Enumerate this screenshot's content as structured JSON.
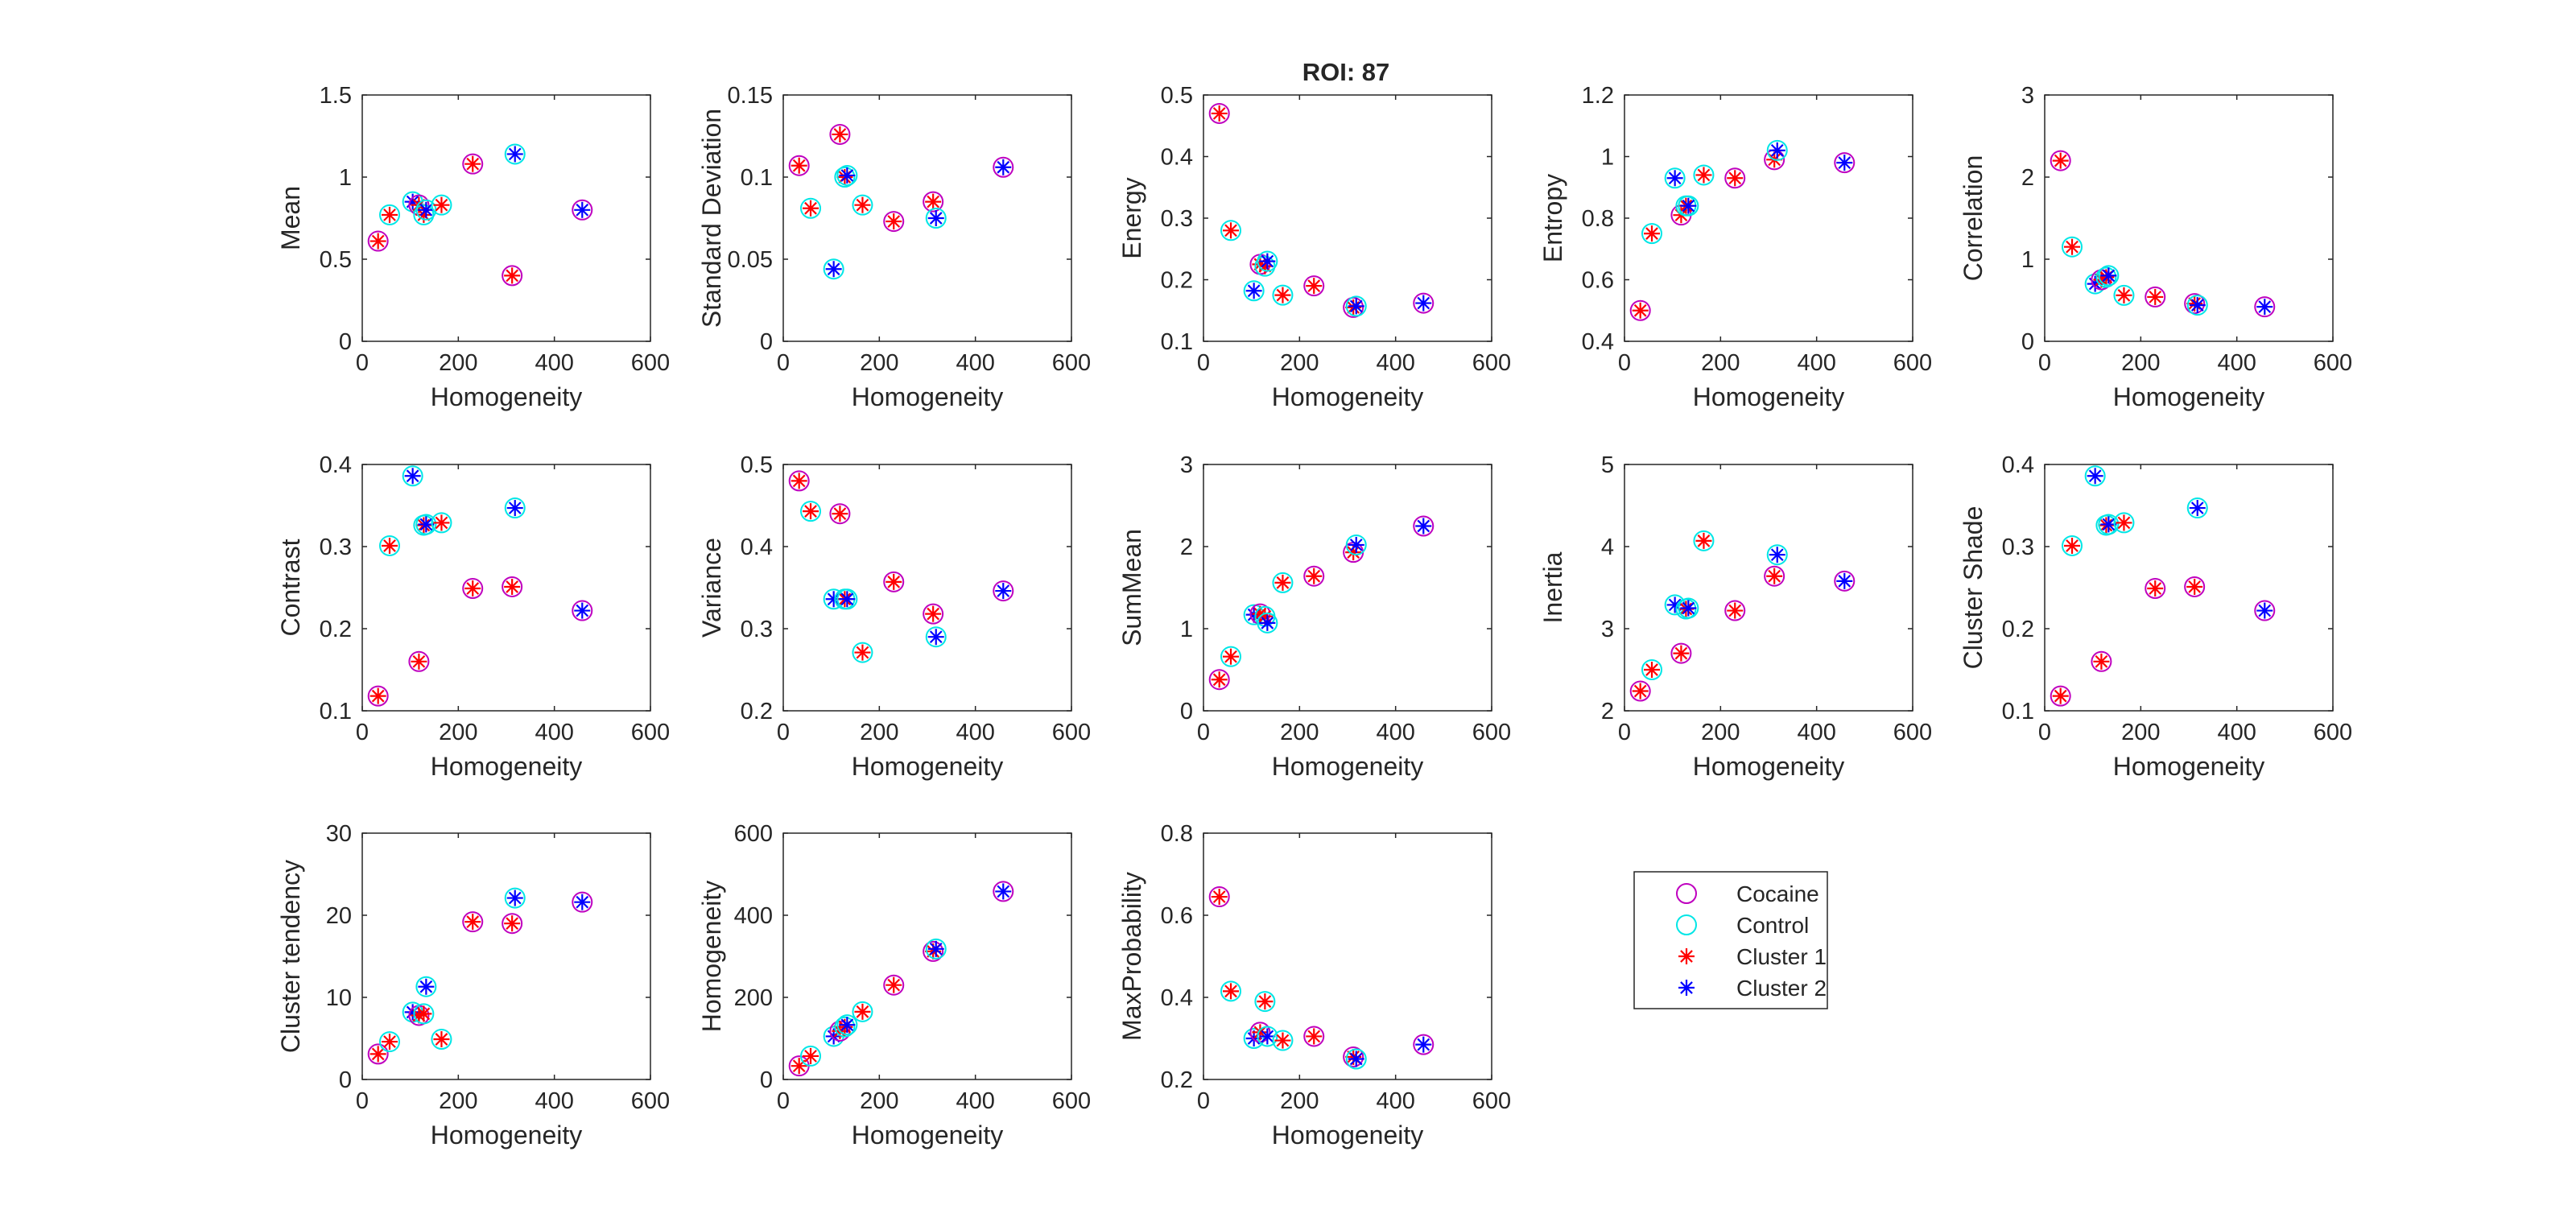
{
  "figure": {
    "title": "ROI: 87"
  },
  "colors": {
    "cocaine": "#bf00bf",
    "control": "#00e6e6",
    "cluster1": "#ff0000",
    "cluster2": "#0000ff",
    "axis": "#262626"
  },
  "legend": {
    "placement": "right, next to third row",
    "entries": [
      {
        "label": "Cocaine",
        "marker": "circle",
        "color": "#bf00bf"
      },
      {
        "label": "Control",
        "marker": "circle",
        "color": "#00e6e6"
      },
      {
        "label": "Cluster 1",
        "marker": "asterisk",
        "color": "#ff0000"
      },
      {
        "label": "Cluster 2",
        "marker": "asterisk",
        "color": "#0000ff"
      }
    ]
  },
  "chart_data": {
    "type": "scatter",
    "x_label": "Homogeneity",
    "xlim": [
      0,
      600
    ],
    "xticks": [
      0,
      200,
      400,
      600
    ],
    "xtick_labels": [
      "0",
      "200",
      "400",
      "600"
    ],
    "points": [
      {
        "x": 33,
        "group": "Cocaine",
        "cluster": 1
      },
      {
        "x": 57,
        "group": "Control",
        "cluster": 1
      },
      {
        "x": 105,
        "group": "Control",
        "cluster": 2
      },
      {
        "x": 118,
        "group": "Cocaine",
        "cluster": 1
      },
      {
        "x": 128,
        "group": "Control",
        "cluster": 1
      },
      {
        "x": 133,
        "group": "Control",
        "cluster": 2
      },
      {
        "x": 165,
        "group": "Control",
        "cluster": 1
      },
      {
        "x": 230,
        "group": "Cocaine",
        "cluster": 1
      },
      {
        "x": 312,
        "group": "Cocaine",
        "cluster": 1
      },
      {
        "x": 318,
        "group": "Control",
        "cluster": 2
      },
      {
        "x": 458,
        "group": "Cocaine",
        "cluster": 2
      }
    ],
    "panels": [
      {
        "ylabel": "Mean",
        "ylim": [
          0,
          1.5
        ],
        "yticks": [
          "0",
          "0.5",
          "1",
          "1.5"
        ],
        "y": [
          0.61,
          0.77,
          0.85,
          0.83,
          0.77,
          0.8,
          0.83,
          1.08,
          0.4,
          1.14,
          0.8
        ]
      },
      {
        "ylabel": "Standard Deviation",
        "ylim": [
          0,
          0.15
        ],
        "yticks": [
          "0",
          "0.05",
          "0.1",
          "0.15"
        ],
        "y": [
          0.107,
          0.081,
          0.044,
          0.126,
          0.1,
          0.101,
          0.083,
          0.073,
          0.085,
          0.075,
          0.106
        ]
      },
      {
        "ylabel": "Energy",
        "ylim": [
          0.1,
          0.5
        ],
        "yticks": [
          "0.1",
          "0.2",
          "0.3",
          "0.4",
          "0.5"
        ],
        "y": [
          0.47,
          0.28,
          0.182,
          0.225,
          0.222,
          0.23,
          0.175,
          0.19,
          0.155,
          0.157,
          0.162
        ]
      },
      {
        "ylabel": "Entropy",
        "ylim": [
          0.4,
          1.2
        ],
        "yticks": [
          "0.4",
          "0.6",
          "0.8",
          "1",
          "1.2"
        ],
        "y": [
          0.5,
          0.75,
          0.93,
          0.81,
          0.84,
          0.84,
          0.94,
          0.93,
          0.99,
          1.02,
          0.98
        ]
      },
      {
        "ylabel": "Correlation",
        "ylim": [
          0,
          3
        ],
        "yticks": [
          "0",
          "1",
          "2",
          "3"
        ],
        "y": [
          2.2,
          1.15,
          0.7,
          0.75,
          0.78,
          0.8,
          0.56,
          0.54,
          0.46,
          0.44,
          0.42
        ]
      },
      {
        "ylabel": "Contrast",
        "ylim": [
          0.1,
          0.4
        ],
        "yticks": [
          "0.1",
          "0.2",
          "0.3",
          "0.4"
        ],
        "y": [
          0.118,
          0.301,
          0.386,
          0.16,
          0.326,
          0.327,
          0.329,
          0.249,
          0.251,
          0.347,
          0.222
        ]
      },
      {
        "ylabel": "Variance",
        "ylim": [
          0.2,
          0.5
        ],
        "yticks": [
          "0.2",
          "0.3",
          "0.4",
          "0.5"
        ],
        "y": [
          0.48,
          0.443,
          0.336,
          0.44,
          0.336,
          0.336,
          0.271,
          0.357,
          0.318,
          0.29,
          0.346
        ]
      },
      {
        "ylabel": "SumMean",
        "ylim": [
          0,
          3
        ],
        "yticks": [
          "0",
          "1",
          "2",
          "3"
        ],
        "y": [
          0.38,
          0.66,
          1.17,
          1.18,
          1.15,
          1.07,
          1.56,
          1.64,
          1.93,
          2.02,
          2.25
        ]
      },
      {
        "ylabel": "Inertia",
        "ylim": [
          2,
          5
        ],
        "yticks": [
          "2",
          "3",
          "4",
          "5"
        ],
        "y": [
          2.24,
          2.5,
          3.29,
          2.7,
          3.24,
          3.25,
          4.07,
          3.22,
          3.64,
          3.9,
          3.58
        ]
      },
      {
        "ylabel": "Cluster Shade",
        "ylim": [
          0.1,
          0.4
        ],
        "yticks": [
          "0.1",
          "0.2",
          "0.3",
          "0.4"
        ],
        "y": [
          0.118,
          0.301,
          0.386,
          0.16,
          0.326,
          0.327,
          0.329,
          0.249,
          0.251,
          0.347,
          0.222
        ]
      },
      {
        "ylabel": "Cluster tendency",
        "ylim": [
          0,
          30
        ],
        "yticks": [
          "0",
          "10",
          "20",
          "30"
        ],
        "y": [
          3.1,
          4.6,
          8.2,
          7.8,
          8.0,
          11.3,
          4.9,
          19.2,
          19.0,
          22.1,
          21.6
        ]
      },
      {
        "ylabel": "Homogeneity",
        "ylim": [
          0,
          600
        ],
        "yticks": [
          "0",
          "200",
          "400",
          "600"
        ],
        "y": [
          33,
          57,
          105,
          118,
          128,
          133,
          165,
          230,
          312,
          318,
          458
        ]
      },
      {
        "ylabel": "MaxProbability",
        "ylim": [
          0.2,
          0.8
        ],
        "yticks": [
          "0.2",
          "0.4",
          "0.6",
          "0.8"
        ],
        "y": [
          0.645,
          0.415,
          0.3,
          0.315,
          0.39,
          0.305,
          0.295,
          0.305,
          0.255,
          0.25,
          0.285
        ]
      }
    ]
  }
}
